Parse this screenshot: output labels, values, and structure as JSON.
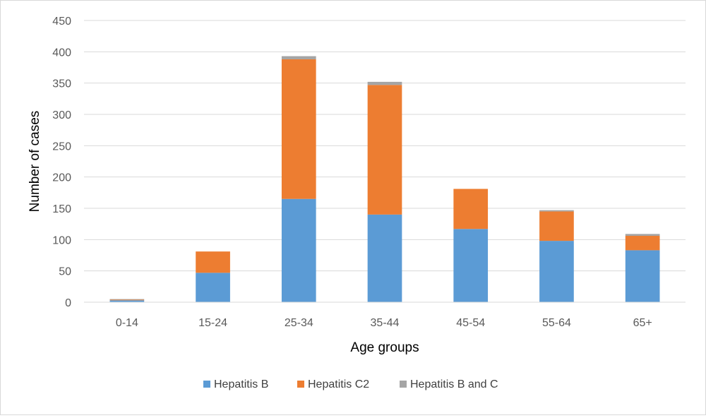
{
  "chart_data": {
    "type": "bar",
    "stacked": true,
    "title": "",
    "xlabel": "Age groups",
    "ylabel": "Number of cases",
    "categories": [
      "0-14",
      "15-24",
      "25-34",
      "35-44",
      "45-54",
      "55-64",
      "65+"
    ],
    "ylim": [
      0,
      450
    ],
    "yticks": [
      0,
      50,
      100,
      150,
      200,
      250,
      300,
      350,
      400,
      450
    ],
    "grid": true,
    "legend": "bottom",
    "series": [
      {
        "name": "Hepatitis B",
        "color": "#5b9bd5",
        "values": [
          3,
          47,
          165,
          140,
          117,
          98,
          83
        ]
      },
      {
        "name": "Hepatitis C2",
        "color": "#ed7d31",
        "values": [
          1,
          34,
          223,
          207,
          64,
          47,
          23
        ]
      },
      {
        "name": "Hepatitis B and C",
        "color": "#a5a5a5",
        "values": [
          1,
          0,
          5,
          5,
          0,
          2,
          3
        ]
      }
    ]
  }
}
